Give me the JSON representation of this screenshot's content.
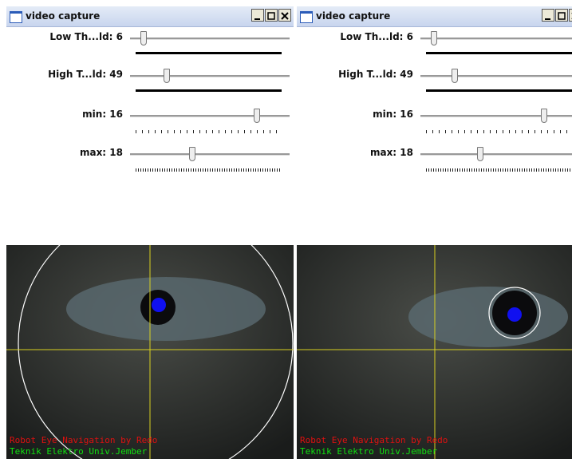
{
  "windows": [
    {
      "title": "video capture",
      "sliders": [
        {
          "label": "Low Th...ld: 6"
        },
        {
          "label": "High T...ld: 49"
        },
        {
          "label": "min: 16"
        },
        {
          "label": "max: 18"
        }
      ],
      "overlay": [
        "Robot Eye Navigation by Redo",
        "Teknik Elektro Univ.Jember"
      ]
    },
    {
      "title": "video capture",
      "sliders": [
        {
          "label": "Low Th...ld: 6"
        },
        {
          "label": "High T...ld: 49"
        },
        {
          "label": "min: 16"
        },
        {
          "label": "max: 18"
        }
      ],
      "overlay": [
        "Robot Eye Navigation by Redo",
        "Teknik Elektro Univ.Jember"
      ]
    }
  ]
}
